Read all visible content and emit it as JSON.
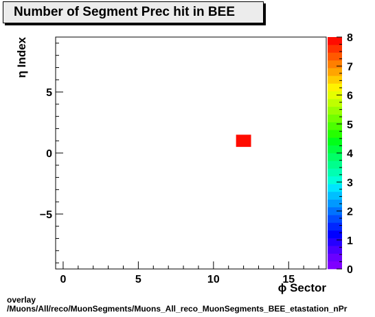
{
  "chart_data": {
    "type": "heatmap",
    "title": "Number of Segment Prec hit in BEE",
    "xlabel": "ϕ Sector",
    "ylabel": "η Index",
    "xlim": [
      -0.5,
      17.5
    ],
    "ylim": [
      -9.5,
      9.5
    ],
    "x_ticks": [
      0,
      5,
      10,
      15
    ],
    "y_ticks": [
      -5,
      0,
      5
    ],
    "cells": [
      {
        "x": 12,
        "y": 1,
        "value": 8
      }
    ],
    "colorbar": {
      "min": 0,
      "max": 8,
      "ticks": [
        0,
        1,
        2,
        3,
        4,
        5,
        6,
        7,
        8
      ],
      "colors": [
        "#7f00ff",
        "#6a00ff",
        "#4b00ff",
        "#2600ff",
        "#0000ff",
        "#0026ff",
        "#004cff",
        "#0072ff",
        "#0099ff",
        "#00bfff",
        "#00e5ff",
        "#00ffd9",
        "#00ffb2",
        "#00ff8c",
        "#00ff66",
        "#00ff40",
        "#00ff19",
        "#26ff00",
        "#4cff00",
        "#72ff00",
        "#99ff00",
        "#bfff00",
        "#e5ff00",
        "#fff200",
        "#ffcc00",
        "#ffa500",
        "#ff7f00",
        "#ff5900",
        "#ff3200",
        "#ff0c00"
      ]
    }
  },
  "footer": {
    "line1": "overlay",
    "line2": "/Muons/All/reco/MuonSegments/Muons_All_reco_MuonSegments_BEE_etastation_nPr"
  }
}
